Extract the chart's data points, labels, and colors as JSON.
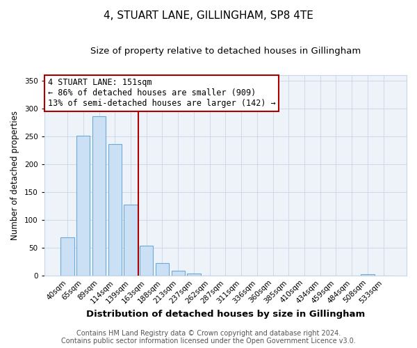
{
  "title": "4, STUART LANE, GILLINGHAM, SP8 4TE",
  "subtitle": "Size of property relative to detached houses in Gillingham",
  "xlabel": "Distribution of detached houses by size in Gillingham",
  "ylabel": "Number of detached properties",
  "bar_labels": [
    "40sqm",
    "65sqm",
    "89sqm",
    "114sqm",
    "139sqm",
    "163sqm",
    "188sqm",
    "213sqm",
    "237sqm",
    "262sqm",
    "287sqm",
    "311sqm",
    "336sqm",
    "360sqm",
    "385sqm",
    "410sqm",
    "434sqm",
    "459sqm",
    "484sqm",
    "508sqm",
    "533sqm"
  ],
  "bar_values": [
    69,
    251,
    286,
    236,
    128,
    54,
    22,
    9,
    3,
    0,
    0,
    0,
    0,
    0,
    0,
    0,
    0,
    0,
    0,
    2,
    0
  ],
  "bar_color": "#cce0f5",
  "bar_edge_color": "#6aaad4",
  "vline_color": "#aa0000",
  "annotation_title": "4 STUART LANE: 151sqm",
  "annotation_line1": "← 86% of detached houses are smaller (909)",
  "annotation_line2": "13% of semi-detached houses are larger (142) →",
  "annotation_box_color": "#ffffff",
  "annotation_border_color": "#aa0000",
  "ylim": [
    0,
    360
  ],
  "yticks": [
    0,
    50,
    100,
    150,
    200,
    250,
    300,
    350
  ],
  "footer1": "Contains HM Land Registry data © Crown copyright and database right 2024.",
  "footer2": "Contains public sector information licensed under the Open Government Licence v3.0.",
  "bg_color": "#ffffff",
  "plot_bg_color": "#eef3fa",
  "grid_color": "#c8d4e8",
  "title_fontsize": 11,
  "subtitle_fontsize": 9.5,
  "xlabel_fontsize": 9.5,
  "ylabel_fontsize": 8.5,
  "tick_fontsize": 7.5,
  "annotation_fontsize": 8.5,
  "footer_fontsize": 7
}
